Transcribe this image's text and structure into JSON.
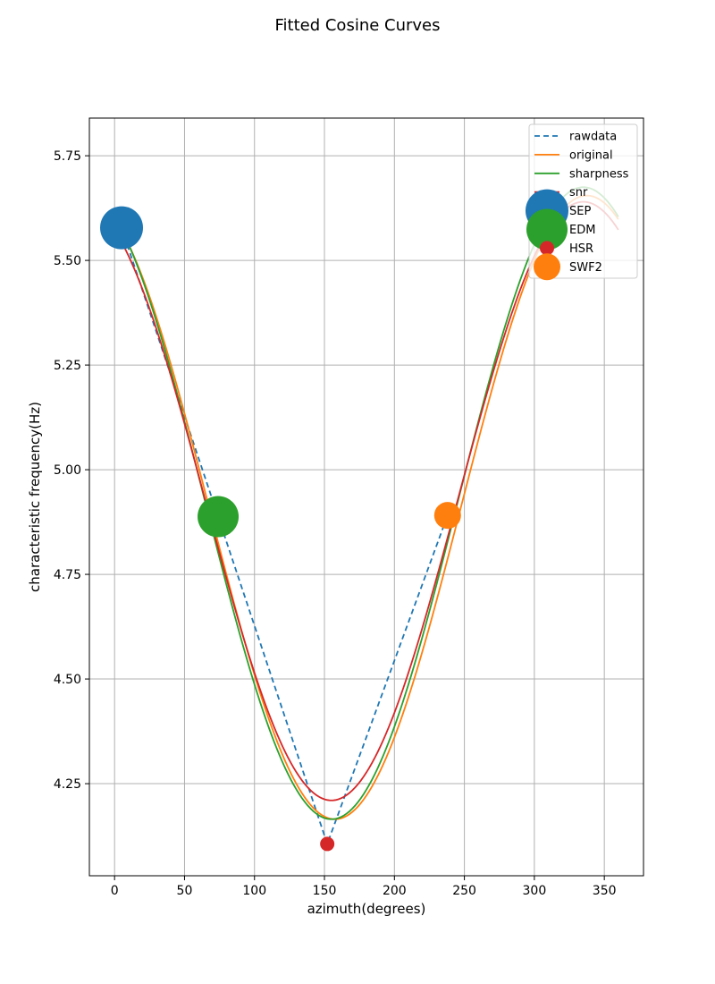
{
  "chart_data": {
    "type": "line",
    "title": "Fitted Cosine Curves",
    "xlabel": "azimuth(degrees)",
    "ylabel": "characteristic frequency(Hz)",
    "xlim": [
      -18,
      378
    ],
    "ylim": [
      4.03,
      5.84
    ],
    "xticks": [
      0,
      50,
      100,
      150,
      200,
      250,
      300,
      350
    ],
    "yticks": [
      4.25,
      4.5,
      4.75,
      5.0,
      5.25,
      5.5,
      5.75
    ],
    "xtick_labels": [
      "0",
      "50",
      "100",
      "150",
      "200",
      "250",
      "300",
      "350"
    ],
    "ytick_labels": [
      "4.25",
      "4.50",
      "4.75",
      "5.00",
      "5.25",
      "5.50",
      "5.75"
    ],
    "grid": true,
    "legend_position": "top-right",
    "line_series": [
      {
        "name": "rawdata",
        "style": "dashed",
        "color": "#1f77b4",
        "x": [
          5,
          74,
          152,
          238
        ],
        "y": [
          5.578,
          4.888,
          4.106,
          4.891
        ]
      },
      {
        "name": "original",
        "style": "solid",
        "color": "#ff7f0e",
        "mean": 4.91,
        "amplitude": 0.745,
        "phase_deg": 337.5,
        "x_range": [
          0,
          360
        ]
      },
      {
        "name": "sharpness",
        "style": "solid",
        "color": "#2ca02c",
        "mean": 4.92,
        "amplitude": 0.755,
        "phase_deg": 335,
        "x_range": [
          0,
          360
        ]
      },
      {
        "name": "snr",
        "style": "solid",
        "color": "#d62728",
        "mean": 4.925,
        "amplitude": 0.715,
        "phase_deg": 335,
        "x_range": [
          0,
          360
        ]
      }
    ],
    "point_series": [
      {
        "name": "SEP",
        "color": "#1f77b4",
        "x": 5,
        "y": 5.578,
        "size": 24
      },
      {
        "name": "EDM",
        "color": "#2ca02c",
        "x": 74,
        "y": 4.888,
        "size": 23
      },
      {
        "name": "HSR",
        "color": "#d62728",
        "x": 152,
        "y": 4.106,
        "size": 8
      },
      {
        "name": "SWF2",
        "color": "#ff7f0e",
        "x": 238,
        "y": 4.891,
        "size": 15
      }
    ]
  }
}
